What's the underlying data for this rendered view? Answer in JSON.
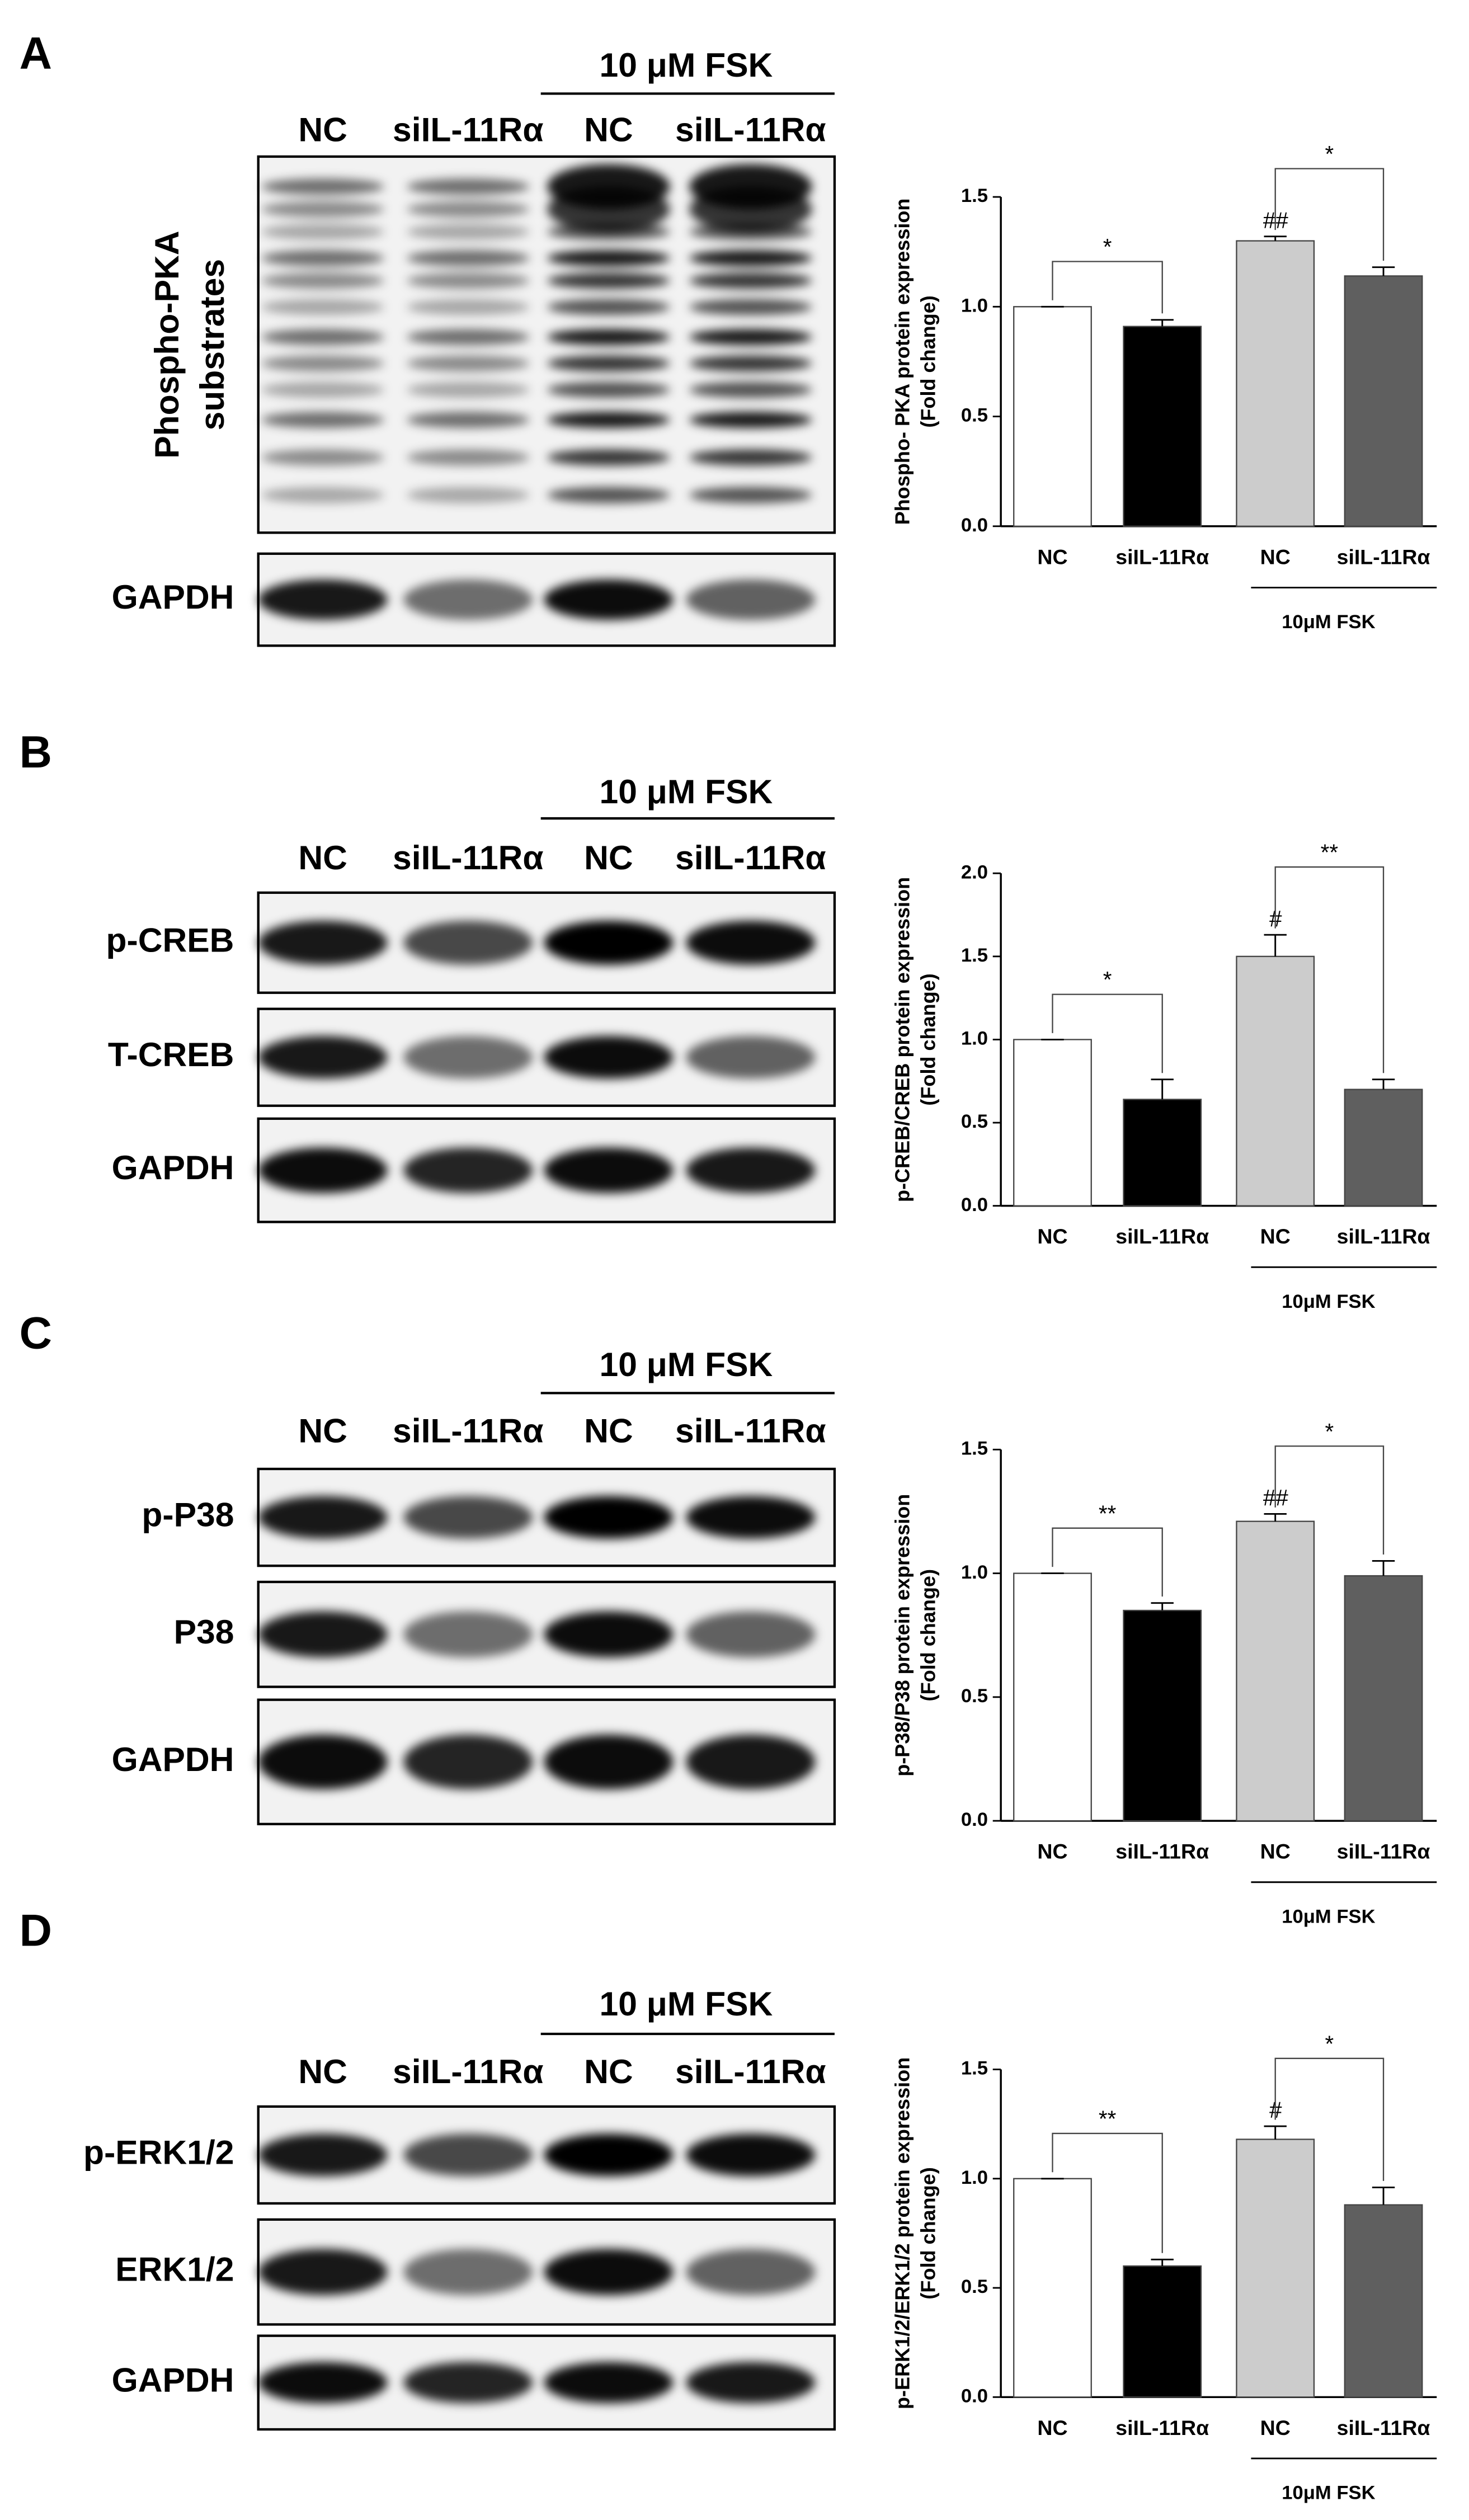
{
  "panels": [
    {
      "letter": "A",
      "treatment": "10 μM FSK",
      "lanes": [
        "NC",
        "siIL-11Rα",
        "NC",
        "siIL-11Rα"
      ],
      "rows": [
        [
          "Phospho-PKA",
          "substrates"
        ],
        [
          "GAPDH"
        ]
      ]
    },
    {
      "letter": "B",
      "treatment": "10 μM FSK",
      "lanes": [
        "NC",
        "siIL-11Rα",
        "NC",
        "siIL-11Rα"
      ],
      "rows": [
        [
          "p-CREB"
        ],
        [
          "T-CREB"
        ],
        [
          "GAPDH"
        ]
      ]
    },
    {
      "letter": "C",
      "treatment": "10 μM FSK",
      "lanes": [
        "NC",
        "siIL-11Rα",
        "NC",
        "siIL-11Rα"
      ],
      "rows": [
        [
          "p-P38"
        ],
        [
          "P38"
        ],
        [
          "GAPDH"
        ]
      ]
    },
    {
      "letter": "D",
      "treatment": "10 μM FSK",
      "lanes": [
        "NC",
        "siIL-11Rα",
        "NC",
        "siIL-11Rα"
      ],
      "rows": [
        [
          "p-ERK1/2"
        ],
        [
          "ERK1/2"
        ],
        [
          "GAPDH"
        ]
      ]
    }
  ],
  "chart_data": [
    {
      "type": "bar",
      "ylabel": [
        "Phospho- PKA protein expression",
        "(Fold change)"
      ],
      "categories": [
        "NC",
        "siIL-11Rα",
        "NC",
        "siIL-11Rα"
      ],
      "group_label": "10μM FSK",
      "values": [
        1.0,
        0.91,
        1.3,
        1.14
      ],
      "errors": [
        0,
        0.03,
        0.02,
        0.04
      ],
      "colors": [
        "#ffffff",
        "#000000",
        "#cccccc",
        "#5f5f5f"
      ],
      "ylim": [
        0,
        1.5
      ],
      "yticks": [
        {
          "value": 0,
          "label": "0.0"
        },
        {
          "value": 0.5,
          "label": "0.5"
        },
        {
          "value": 1,
          "label": "1.0"
        },
        {
          "value": 1.5,
          "label": "1.5"
        }
      ],
      "brackets": [
        {
          "from": 0,
          "to": 1,
          "label": "*"
        },
        {
          "from": 2,
          "to": 3,
          "label": "*"
        }
      ],
      "bar_labels": [
        {
          "bar": 2,
          "label": "##"
        }
      ]
    },
    {
      "type": "bar",
      "ylabel": [
        "p-CREB/CREB protein expression",
        "(Fold change)"
      ],
      "categories": [
        "NC",
        "siIL-11Rα",
        "NC",
        "siIL-11Rα"
      ],
      "group_label": "10μM FSK",
      "values": [
        1.0,
        0.64,
        1.5,
        0.7
      ],
      "errors": [
        0,
        0.12,
        0.13,
        0.06
      ],
      "colors": [
        "#ffffff",
        "#000000",
        "#cccccc",
        "#5f5f5f"
      ],
      "ylim": [
        0,
        2
      ],
      "yticks": [
        {
          "value": 0,
          "label": "0.0"
        },
        {
          "value": 0.5,
          "label": "0.5"
        },
        {
          "value": 1,
          "label": "1.0"
        },
        {
          "value": 1.5,
          "label": "1.5"
        },
        {
          "value": 2,
          "label": "2.0"
        }
      ],
      "brackets": [
        {
          "from": 0,
          "to": 1,
          "label": "*"
        },
        {
          "from": 2,
          "to": 3,
          "label": "**"
        }
      ],
      "bar_labels": [
        {
          "bar": 2,
          "label": "#"
        }
      ]
    },
    {
      "type": "bar",
      "ylabel": [
        "p-P38/P38 protein expression",
        "(Fold change)"
      ],
      "categories": [
        "NC",
        "siIL-11Rα",
        "NC",
        "siIL-11Rα"
      ],
      "group_label": "10μM FSK",
      "values": [
        1.0,
        0.85,
        1.21,
        0.99
      ],
      "errors": [
        0,
        0.03,
        0.03,
        0.06
      ],
      "colors": [
        "#ffffff",
        "#000000",
        "#cccccc",
        "#5f5f5f"
      ],
      "ylim": [
        0,
        1.5
      ],
      "yticks": [
        {
          "value": 0,
          "label": "0.0"
        },
        {
          "value": 0.5,
          "label": "0.5"
        },
        {
          "value": 1,
          "label": "1.0"
        },
        {
          "value": 1.5,
          "label": "1.5"
        }
      ],
      "brackets": [
        {
          "from": 0,
          "to": 1,
          "label": "**"
        },
        {
          "from": 2,
          "to": 3,
          "label": "*"
        }
      ],
      "bar_labels": [
        {
          "bar": 2,
          "label": "##"
        }
      ]
    },
    {
      "type": "bar",
      "ylabel": [
        "p-ERK1/2/ERK1/2 protein expression",
        "(Fold change)"
      ],
      "categories": [
        "NC",
        "siIL-11Rα",
        "NC",
        "siIL-11Rα"
      ],
      "group_label": "10μM FSK",
      "values": [
        1.0,
        0.6,
        1.18,
        0.88
      ],
      "errors": [
        0,
        0.03,
        0.06,
        0.08
      ],
      "colors": [
        "#ffffff",
        "#000000",
        "#cccccc",
        "#5f5f5f"
      ],
      "ylim": [
        0,
        1.5
      ],
      "yticks": [
        {
          "value": 0,
          "label": "0.0"
        },
        {
          "value": 0.5,
          "label": "0.5"
        },
        {
          "value": 1,
          "label": "1.0"
        },
        {
          "value": 1.5,
          "label": "1.5"
        }
      ],
      "brackets": [
        {
          "from": 0,
          "to": 1,
          "label": "**"
        },
        {
          "from": 2,
          "to": 3,
          "label": "*"
        }
      ],
      "bar_labels": [
        {
          "bar": 2,
          "label": "#"
        }
      ]
    }
  ]
}
